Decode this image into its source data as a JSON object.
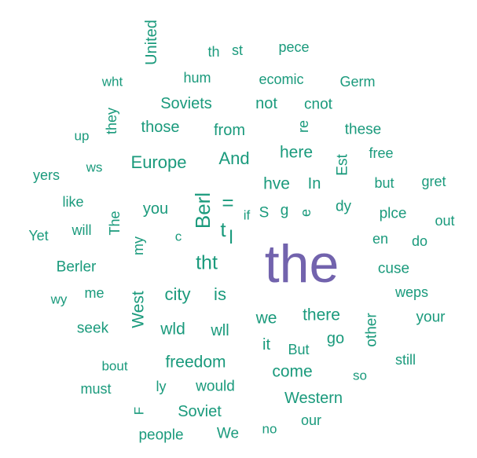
{
  "colors": {
    "primary": "#1a9a7c",
    "highlight": "#7263ad",
    "background": "#ffffff"
  },
  "words": [
    {
      "text": "the",
      "highlight": true
    },
    {
      "text": "United"
    },
    {
      "text": "th"
    },
    {
      "text": "st"
    },
    {
      "text": "pece"
    },
    {
      "text": "wht"
    },
    {
      "text": "hum"
    },
    {
      "text": "ecomic"
    },
    {
      "text": "Germ"
    },
    {
      "text": "Soviets"
    },
    {
      "text": "not"
    },
    {
      "text": "cnot"
    },
    {
      "text": "they"
    },
    {
      "text": "up"
    },
    {
      "text": "those"
    },
    {
      "text": "from"
    },
    {
      "text": "re"
    },
    {
      "text": "these"
    },
    {
      "text": "Europe"
    },
    {
      "text": "And"
    },
    {
      "text": "here"
    },
    {
      "text": "free"
    },
    {
      "text": "Est"
    },
    {
      "text": "yers"
    },
    {
      "text": "ws"
    },
    {
      "text": "hve"
    },
    {
      "text": "In"
    },
    {
      "text": "but"
    },
    {
      "text": "gret"
    },
    {
      "text": "like"
    },
    {
      "text": "you"
    },
    {
      "text": "Berl"
    },
    {
      "text": "="
    },
    {
      "text": "if"
    },
    {
      "text": "S"
    },
    {
      "text": "g"
    },
    {
      "text": "e"
    },
    {
      "text": "dy"
    },
    {
      "text": "plce"
    },
    {
      "text": "Yet"
    },
    {
      "text": "will"
    },
    {
      "text": "The"
    },
    {
      "text": "c"
    },
    {
      "text": "t"
    },
    {
      "text": "l"
    },
    {
      "text": "out"
    },
    {
      "text": "en"
    },
    {
      "text": "do"
    },
    {
      "text": "my"
    },
    {
      "text": "Berler"
    },
    {
      "text": "tht"
    },
    {
      "text": "cuse"
    },
    {
      "text": "wy"
    },
    {
      "text": "me"
    },
    {
      "text": "city"
    },
    {
      "text": "is"
    },
    {
      "text": "weps"
    },
    {
      "text": "West"
    },
    {
      "text": "we"
    },
    {
      "text": "there"
    },
    {
      "text": "other"
    },
    {
      "text": "your"
    },
    {
      "text": "seek"
    },
    {
      "text": "wld"
    },
    {
      "text": "wll"
    },
    {
      "text": "it"
    },
    {
      "text": "But"
    },
    {
      "text": "go"
    },
    {
      "text": "bout"
    },
    {
      "text": "freedom"
    },
    {
      "text": "still"
    },
    {
      "text": "come"
    },
    {
      "text": "so"
    },
    {
      "text": "must"
    },
    {
      "text": "ly"
    },
    {
      "text": "would"
    },
    {
      "text": "Western"
    },
    {
      "text": "F"
    },
    {
      "text": "Soviet"
    },
    {
      "text": "our"
    },
    {
      "text": "people"
    },
    {
      "text": "We"
    },
    {
      "text": "no"
    }
  ]
}
